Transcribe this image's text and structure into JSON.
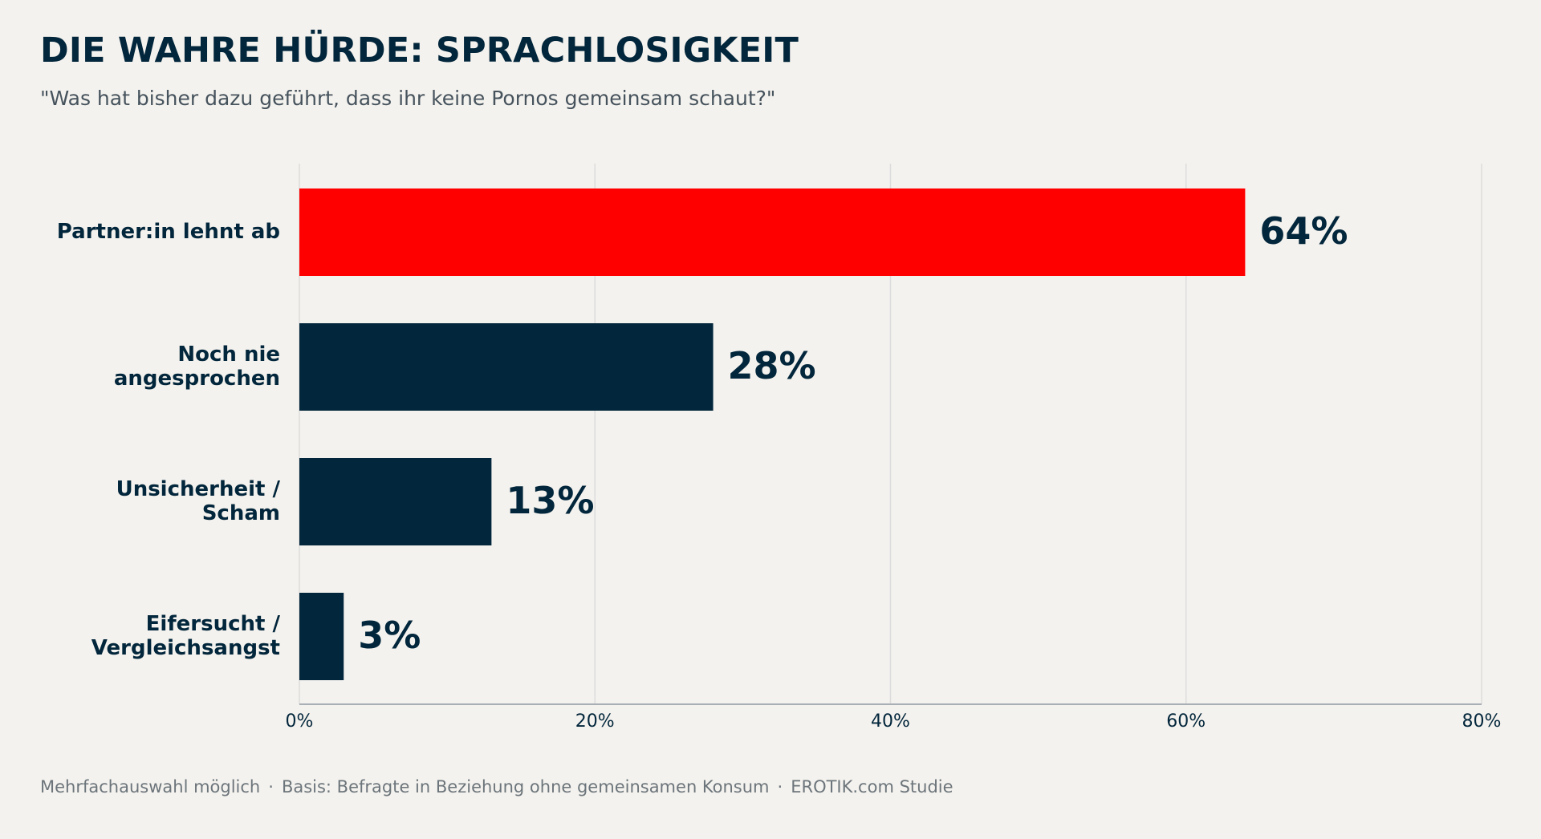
{
  "title": "DIE WAHRE HÜRDE: SPRACHLOSIGKEIT",
  "subtitle": "\"Was hat bisher dazu geführt, dass ihr keine Pornos gemeinsam schaut?\"",
  "footer": {
    "note": "Mehrfachauswahl möglich",
    "basis": "Basis: Befragte in Beziehung ohne gemeinsamen Konsum",
    "source": "EROTIK.com Studie",
    "separator": "·"
  },
  "colors": {
    "highlight": "#ff0000",
    "bar": "#02263b",
    "grid": "#dcdcdc",
    "axis": "#a9b0b5",
    "text": "#02263b"
  },
  "chart_data": {
    "type": "bar",
    "orientation": "horizontal",
    "categories": [
      [
        "Partner:in lehnt ab"
      ],
      [
        "Noch nie",
        "angesprochen"
      ],
      [
        "Unsicherheit /",
        "Scham"
      ],
      [
        "Eifersucht /",
        "Vergleichsangst"
      ]
    ],
    "values": [
      64,
      28,
      13,
      3
    ],
    "data_labels": [
      "64%",
      "28%",
      "13%",
      "3%"
    ],
    "highlight_index": 0,
    "xlim": [
      0,
      80
    ],
    "xticks": [
      0,
      20,
      40,
      60,
      80
    ],
    "xtick_labels": [
      "0%",
      "20%",
      "40%",
      "60%",
      "80%"
    ],
    "grid": true,
    "legend": "none"
  }
}
